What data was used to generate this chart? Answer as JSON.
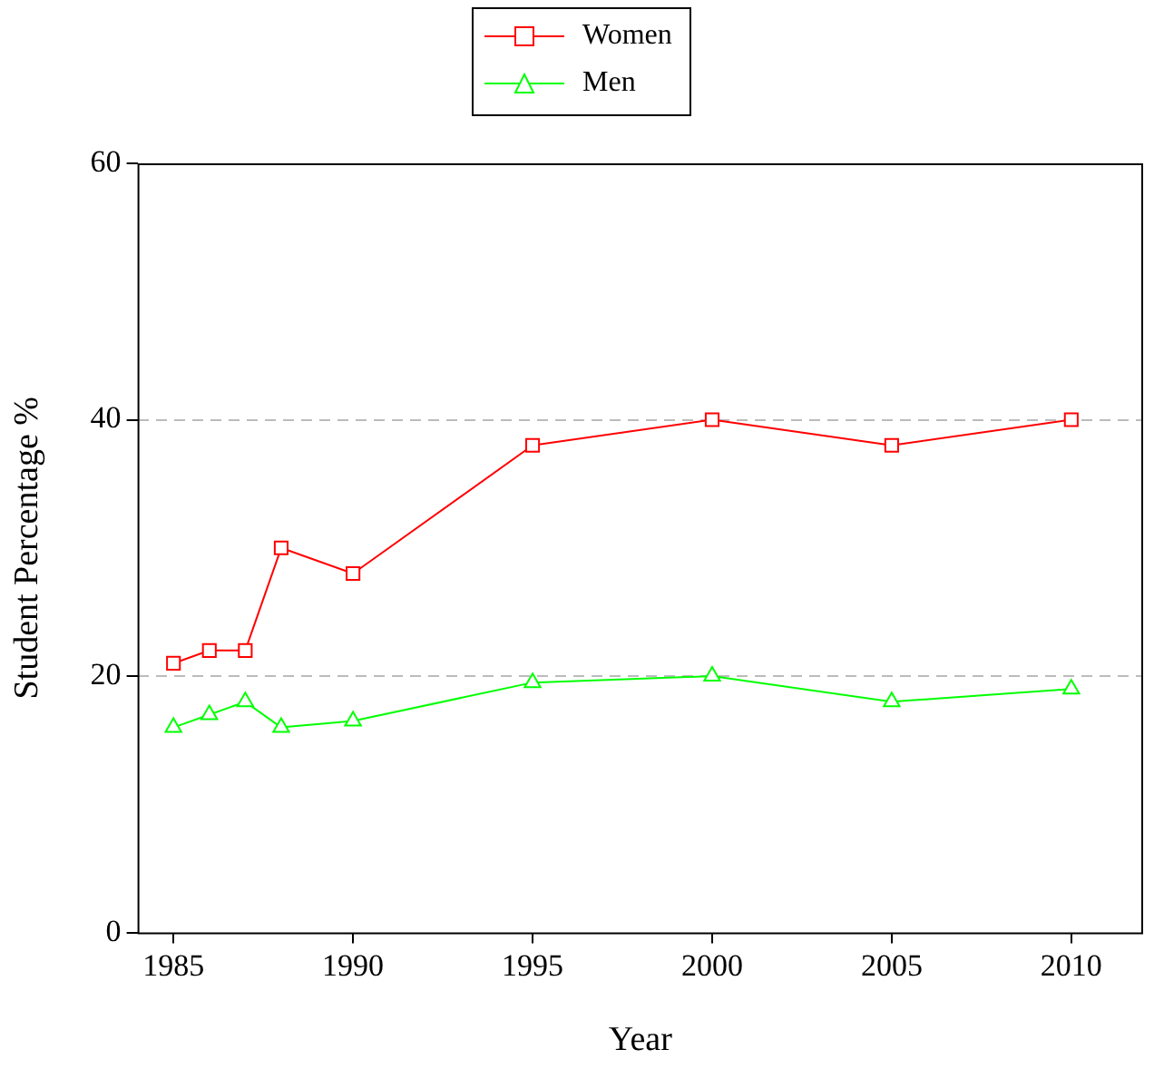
{
  "chart_data": {
    "type": "line",
    "xlabel": "Year",
    "ylabel": "Student Percentage %",
    "x": [
      1985,
      1986,
      1987,
      1988,
      1990,
      1995,
      2000,
      2005,
      2010
    ],
    "series": [
      {
        "name": "Women",
        "color": "#ff0000",
        "marker": "square",
        "values": [
          21,
          22,
          22,
          30,
          28,
          38,
          40,
          38,
          40
        ]
      },
      {
        "name": "Men",
        "color": "#00ff00",
        "marker": "triangle",
        "values": [
          16,
          17,
          18,
          16,
          16.5,
          19.5,
          20,
          18,
          19
        ]
      }
    ],
    "xlim": [
      1984,
      2012
    ],
    "xticks": [
      {
        "value": 1985,
        "label": "1985"
      },
      {
        "value": 1990,
        "label": "1990"
      },
      {
        "value": 1995,
        "label": "1995"
      },
      {
        "value": 2000,
        "label": "2000"
      },
      {
        "value": 2005,
        "label": "2005"
      },
      {
        "value": 2010,
        "label": "2010"
      }
    ],
    "ylim": [
      0,
      60
    ],
    "yticks": [
      0,
      20,
      40,
      60
    ],
    "grid": "y",
    "legend": "top",
    "line_style": "solid"
  }
}
